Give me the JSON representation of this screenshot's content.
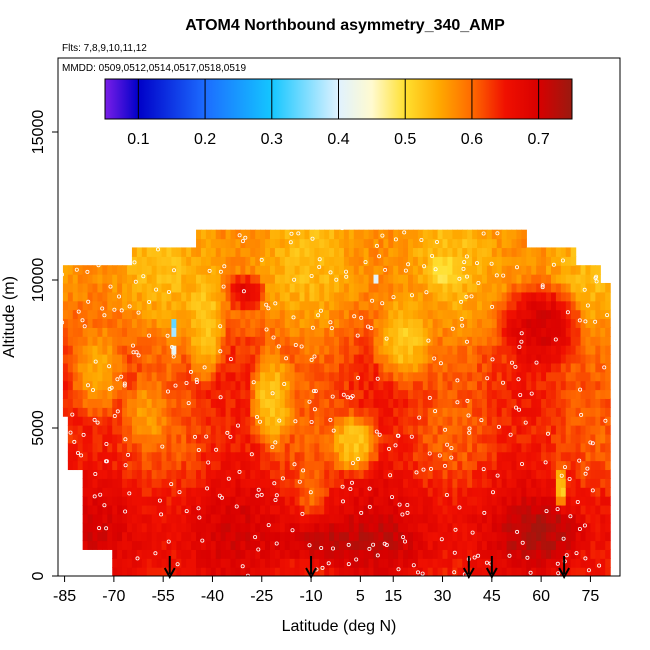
{
  "chart_data": {
    "type": "heatmap",
    "title": "ATOM4 Northbound asymmetry_340_AMP",
    "flights_label": "Flts: 7,8,9,10,11,12",
    "dates_label": "MMDD: 0509,0512,0514,0517,0518,0519",
    "xlabel": "Latitude (deg N)",
    "ylabel": "Altitude (m)",
    "xlim": [
      -87,
      84
    ],
    "ylim": [
      0,
      17500
    ],
    "x_ticks": [
      -85,
      -70,
      -55,
      -40,
      -25,
      -10,
      5,
      15,
      30,
      45,
      60,
      75
    ],
    "y_ticks": [
      0,
      5000,
      10000,
      15000
    ],
    "colorbar": {
      "range": [
        0.05,
        0.75
      ],
      "ticks": [
        0.1,
        0.2,
        0.3,
        0.4,
        0.5,
        0.6,
        0.7
      ],
      "stops": [
        {
          "v": 0.05,
          "color": "#7a1ee8"
        },
        {
          "v": 0.1,
          "color": "#0000c8"
        },
        {
          "v": 0.2,
          "color": "#1c6cff"
        },
        {
          "v": 0.3,
          "color": "#14c6ff"
        },
        {
          "v": 0.4,
          "color": "#e0f2ff"
        },
        {
          "v": 0.45,
          "color": "#fffad0"
        },
        {
          "v": 0.5,
          "color": "#ffe030"
        },
        {
          "v": 0.55,
          "color": "#ffaa00"
        },
        {
          "v": 0.6,
          "color": "#ff6a00"
        },
        {
          "v": 0.65,
          "color": "#f01000"
        },
        {
          "v": 0.7,
          "color": "#d80000"
        },
        {
          "v": 0.75,
          "color": "#9a1a10"
        }
      ]
    },
    "profile_latitudes": [
      -53,
      -10,
      38,
      45,
      67
    ],
    "coverage_top": [
      {
        "lat": -85,
        "alt": 10600
      },
      {
        "lat": -65,
        "alt": 10600
      },
      {
        "lat": -65,
        "alt": 11200
      },
      {
        "lat": -45,
        "alt": 11200
      },
      {
        "lat": -45,
        "alt": 11800
      },
      {
        "lat": 55,
        "alt": 11800
      },
      {
        "lat": 55,
        "alt": 11200
      },
      {
        "lat": 70,
        "alt": 11200
      },
      {
        "lat": 70,
        "alt": 10600
      },
      {
        "lat": 78,
        "alt": 10600
      },
      {
        "lat": 78,
        "alt": 10000
      },
      {
        "lat": 81,
        "alt": 10000
      },
      {
        "lat": 81,
        "alt": 9000
      }
    ],
    "coverage_bottom": [
      {
        "lat": 81,
        "alt": 9000
      },
      {
        "lat": 81,
        "alt": 0
      },
      {
        "lat": -70,
        "alt": 0
      },
      {
        "lat": -70,
        "alt": 1000
      },
      {
        "lat": -80,
        "alt": 1000
      },
      {
        "lat": -80,
        "alt": 3500
      },
      {
        "lat": -84,
        "alt": 3500
      },
      {
        "lat": -84,
        "alt": 5500
      },
      {
        "lat": -86,
        "alt": 5500
      },
      {
        "lat": -86,
        "alt": 10600
      }
    ],
    "features": [
      {
        "lat": -42,
        "alt": 8500,
        "w": 14,
        "h": 4500,
        "value": 0.52
      },
      {
        "lat": -22,
        "alt": 6000,
        "w": 16,
        "h": 4000,
        "value": 0.52
      },
      {
        "lat": 3,
        "alt": 4500,
        "w": 18,
        "h": 2500,
        "value": 0.52
      },
      {
        "lat": 18,
        "alt": 8000,
        "w": 22,
        "h": 3500,
        "value": 0.52
      },
      {
        "lat": -75,
        "alt": 7000,
        "w": 20,
        "h": 4000,
        "value": 0.55
      },
      {
        "lat": -60,
        "alt": 5500,
        "w": 16,
        "h": 3000,
        "value": 0.56
      },
      {
        "lat": 30,
        "alt": 10300,
        "w": 12,
        "h": 1400,
        "value": 0.5
      },
      {
        "lat": 66,
        "alt": 3000,
        "w": 4,
        "h": 2000,
        "value": 0.5
      },
      {
        "lat": -10,
        "alt": 3000,
        "w": 12,
        "h": 3000,
        "value": 0.6
      },
      {
        "lat": 0,
        "alt": 1200,
        "w": 50,
        "h": 2000,
        "value": 0.72
      },
      {
        "lat": 60,
        "alt": 1500,
        "w": 30,
        "h": 2500,
        "value": 0.73
      },
      {
        "lat": -30,
        "alt": 9600,
        "w": 14,
        "h": 1600,
        "value": 0.68
      },
      {
        "lat": 60,
        "alt": 8500,
        "w": 30,
        "h": 3500,
        "value": 0.7
      },
      {
        "lat": -52,
        "alt": 8400,
        "w": 2,
        "h": 500,
        "value": 0.15
      },
      {
        "lat": -52,
        "alt": 7600,
        "w": 2,
        "h": 400,
        "value": 0.38
      },
      {
        "lat": 10,
        "alt": 10100,
        "w": 2,
        "h": 300,
        "value": 0.38
      }
    ]
  }
}
